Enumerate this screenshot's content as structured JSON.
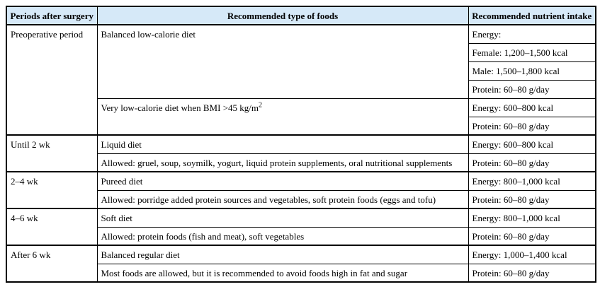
{
  "table": {
    "header": {
      "bg_color": "#d6e9f8",
      "border_color": "#000000",
      "columns": [
        {
          "label": "Periods after surgery"
        },
        {
          "label": "Recommended type of foods"
        },
        {
          "label": "Recommended nutrient intake"
        }
      ]
    },
    "groups": [
      {
        "period": "Preoperative period",
        "foods": [
          {
            "text": "Balanced low-calorie diet",
            "nutrients": [
              "Energy:",
              "Female: 1,200–1,500 kcal",
              "Male: 1,500–1,800 kcal",
              "Protein: 60–80 g/day"
            ]
          },
          {
            "text": "Very low-calorie diet when BMI >45 kg/m",
            "superscript": "2",
            "nutrients": [
              "Energy: 600–800 kcal",
              "Protein: 60–80 g/day"
            ]
          }
        ]
      },
      {
        "period": "Until 2 wk",
        "foods": [
          {
            "text": "Liquid diet",
            "nutrients": [
              "Energy: 600–800 kcal"
            ]
          },
          {
            "text": "Allowed: gruel, soup, soymilk, yogurt, liquid protein supplements, oral nutritional supplements",
            "nutrients": [
              "Protein: 60–80 g/day"
            ]
          }
        ]
      },
      {
        "period": "2–4 wk",
        "foods": [
          {
            "text": "Pureed diet",
            "nutrients": [
              "Energy: 800–1,000 kcal"
            ]
          },
          {
            "text": "Allowed: porridge added protein sources and vegetables, soft protein foods (eggs and tofu)",
            "nutrients": [
              "Protein: 60–80 g/day"
            ]
          }
        ]
      },
      {
        "period": "4–6 wk",
        "foods": [
          {
            "text": "Soft diet",
            "nutrients": [
              "Energy: 800–1,000 kcal"
            ]
          },
          {
            "text": "Allowed: protein foods (fish and meat), soft vegetables",
            "nutrients": [
              "Protein: 60–80 g/day"
            ]
          }
        ]
      },
      {
        "period": "After 6 wk",
        "foods": [
          {
            "text": "Balanced regular diet",
            "nutrients": [
              "Energy: 1,000–1,400 kcal"
            ]
          },
          {
            "text": "Most foods are allowed, but it is recommended to avoid foods high in fat and sugar",
            "nutrients": [
              "Protein: 60–80 g/day"
            ]
          }
        ]
      }
    ]
  }
}
